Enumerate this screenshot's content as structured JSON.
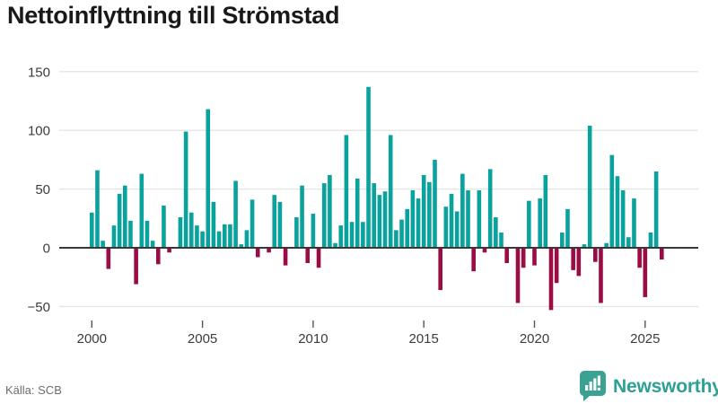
{
  "title": "Nettoinflyttning till Strömstad",
  "source": "Källa: SCB",
  "brand": {
    "name": "Newsworthy",
    "color": "#2da095",
    "icon_color": "#3aa193",
    "icon": "newsworthy-pin-barchart"
  },
  "colors": {
    "positive_bar": "#0aa29d",
    "negative_bar": "#9b0c45",
    "zero_axis": "#383838",
    "gridline": "#e4e4e4",
    "tick_mark": "#555555",
    "tick_label": "#3c3c3c",
    "background": "#ffffff"
  },
  "chart_data": {
    "type": "bar",
    "title": "Nettoinflyttning till Strömstad",
    "xlabel": "",
    "ylabel": "",
    "frequency": "quarterly",
    "period_start": "2000-Q1",
    "period_end": "2025-Q4",
    "grid": true,
    "legend": "none",
    "ylim": [
      -62,
      158
    ],
    "y_ticks": [
      {
        "value": 150,
        "label": "150"
      },
      {
        "value": 100,
        "label": "100"
      },
      {
        "value": 50,
        "label": "50"
      },
      {
        "value": 0,
        "label": "0"
      },
      {
        "value": -50,
        "label": "−50"
      }
    ],
    "x_ticks": [
      {
        "year": 2000,
        "label": "2000"
      },
      {
        "year": 2005,
        "label": "2005"
      },
      {
        "year": 2010,
        "label": "2010"
      },
      {
        "year": 2015,
        "label": "2015"
      },
      {
        "year": 2020,
        "label": "2020"
      },
      {
        "year": 2025,
        "label": "2025"
      }
    ],
    "values": [
      30,
      66,
      6,
      -18,
      19,
      46,
      53,
      23,
      -31,
      63,
      23,
      6,
      -14,
      36,
      -4,
      0,
      26,
      99,
      30,
      19,
      14,
      118,
      39,
      14,
      20,
      20,
      57,
      3,
      15,
      41,
      -8,
      0,
      -4,
      45,
      39,
      -15,
      0,
      26,
      53,
      -13,
      29,
      -17,
      55,
      62,
      4,
      19,
      96,
      22,
      59,
      22,
      137,
      55,
      45,
      48,
      96,
      15,
      24,
      33,
      49,
      42,
      62,
      56,
      75,
      -36,
      35,
      46,
      31,
      63,
      49,
      -20,
      49,
      -4,
      67,
      26,
      13,
      -13,
      0,
      -47,
      -17,
      40,
      -15,
      42,
      62,
      -53,
      -30,
      13,
      33,
      -19,
      -24,
      3,
      104,
      -12,
      -47,
      4,
      79,
      61,
      49,
      9,
      42,
      -17,
      -42,
      13,
      65,
      -10
    ]
  }
}
